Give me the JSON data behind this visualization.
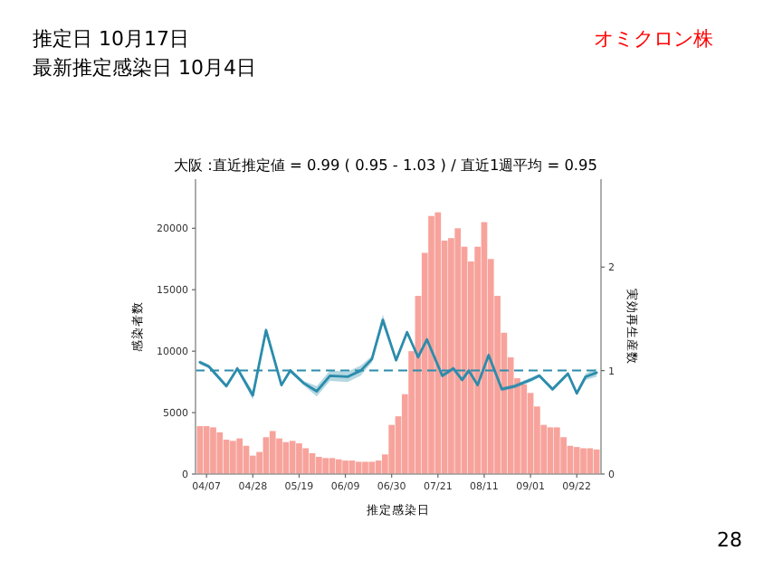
{
  "chart_data": {
    "type": "bar",
    "title": "大阪 :直近推定値 = 0.99 ( 0.95 - 1.03 ) / 直近1週平均 = 0.95",
    "annotations": [
      "推定日  10月17日",
      "最新推定感染日  10月4日",
      "オミクロン株",
      "28"
    ],
    "xlabel": "推定感染日",
    "ylabel": "感染者数",
    "y2label": "実効再生産数",
    "x": [
      "--04-04",
      "--04-07",
      "--04-10",
      "--04-13",
      "--04-16",
      "--04-19",
      "--04-22",
      "--04-25",
      "--04-28",
      "--05-01",
      "--05-04",
      "--05-07",
      "--05-10",
      "--05-13",
      "--05-16",
      "--05-19",
      "--05-22",
      "--05-25",
      "--05-28",
      "--05-31",
      "--06-03",
      "--06-06",
      "--06-09",
      "--06-12",
      "--06-15",
      "--06-18",
      "--06-21",
      "--06-24",
      "--06-27",
      "--06-30",
      "--07-03",
      "--07-06",
      "--07-09",
      "--07-12",
      "--07-15",
      "--07-18",
      "--07-21",
      "--07-24",
      "--07-27",
      "--07-30",
      "--08-02",
      "--08-05",
      "--08-08",
      "--08-11",
      "--08-14",
      "--08-17",
      "--08-20",
      "--08-23",
      "--08-26",
      "--08-29",
      "--09-01",
      "--09-04",
      "--09-07",
      "--09-10",
      "--09-13",
      "--09-16",
      "--09-19",
      "--09-22",
      "--09-25",
      "--09-28",
      "--10-01"
    ],
    "series": [
      {
        "color": "#f7a39c",
        "values": [
          3900,
          3900,
          3800,
          3400,
          2800,
          2700,
          2900,
          2300,
          1500,
          1800,
          3000,
          3500,
          2900,
          2600,
          2700,
          2500,
          2100,
          1700,
          1400,
          1300,
          1300,
          1200,
          1100,
          1100,
          1000,
          1000,
          1000,
          1100,
          1600,
          4000,
          4700,
          6500,
          10000,
          14500,
          18000,
          21000,
          21300,
          19000,
          19200,
          20000,
          18500,
          17300,
          18500,
          20500,
          17500,
          14500,
          11500,
          9500,
          7800,
          7300,
          6600,
          5500,
          4000,
          3800,
          3800,
          3000,
          2300,
          2200,
          2100,
          2100,
          2000
        ]
      },
      {
        "type": "line",
        "axis": "y2",
        "color": "#2b8cab",
        "x": [
          "--04-04",
          "--04-08",
          "--04-16",
          "--04-21",
          "--04-28",
          "--05-04",
          "--05-11",
          "--05-15",
          "--05-21",
          "--05-27",
          "--06-02",
          "--06-10",
          "--06-16",
          "--06-21",
          "--06-26",
          "--07-02",
          "--07-07",
          "--07-12",
          "--07-16",
          "--07-23",
          "--07-28",
          "--08-01",
          "--08-04",
          "--08-08",
          "--08-13",
          "--08-19",
          "--08-25",
          "--09-01",
          "--09-05",
          "--09-11",
          "--09-18",
          "--09-22",
          "--09-26",
          "--10-01"
        ],
        "values": [
          1.08,
          1.04,
          0.85,
          1.02,
          0.76,
          1.39,
          0.86,
          1.0,
          0.88,
          0.8,
          0.95,
          0.94,
          1.0,
          1.11,
          1.49,
          1.1,
          1.37,
          1.13,
          1.3,
          0.95,
          1.02,
          0.91,
          1.0,
          0.86,
          1.15,
          0.82,
          0.85,
          0.91,
          0.95,
          0.82,
          0.97,
          0.78,
          0.94,
          0.98
        ],
        "lower": [
          1.06,
          1.02,
          0.83,
          1.0,
          0.72,
          1.36,
          0.84,
          0.98,
          0.86,
          0.75,
          0.9,
          0.89,
          0.95,
          1.08,
          1.44,
          1.08,
          1.35,
          1.11,
          1.28,
          0.93,
          1.0,
          0.89,
          0.98,
          0.84,
          1.13,
          0.8,
          0.83,
          0.89,
          0.93,
          0.8,
          0.95,
          0.76,
          0.91,
          0.94
        ],
        "upper": [
          1.1,
          1.06,
          0.87,
          1.04,
          0.8,
          1.42,
          0.88,
          1.02,
          0.9,
          0.85,
          1.0,
          0.99,
          1.05,
          1.14,
          1.54,
          1.12,
          1.39,
          1.15,
          1.32,
          0.97,
          1.04,
          0.93,
          1.02,
          0.88,
          1.17,
          0.84,
          0.87,
          0.93,
          0.97,
          0.84,
          0.99,
          0.8,
          0.97,
          1.02
        ]
      }
    ],
    "xlim": [
      "--04-02",
      "--10-03"
    ],
    "xticks": [
      {
        "value": "--04-07",
        "label": "04/07"
      },
      {
        "value": "--04-28",
        "label": "04/28"
      },
      {
        "value": "--05-19",
        "label": "05/19"
      },
      {
        "value": "--06-09",
        "label": "06/09"
      },
      {
        "value": "--06-30",
        "label": "06/30"
      },
      {
        "value": "--07-21",
        "label": "07/21"
      },
      {
        "value": "--08-11",
        "label": "08/11"
      },
      {
        "value": "--09-01",
        "label": "09/01"
      },
      {
        "value": "--09-22",
        "label": "09/22"
      }
    ],
    "ylim": [
      0,
      24000
    ],
    "yticks": [
      0,
      5000,
      10000,
      15000,
      20000
    ],
    "y2lim": [
      0,
      2.85
    ],
    "y2ticks": [
      0,
      1,
      2
    ],
    "ref_lines": [
      {
        "axis": "y2",
        "value": 1,
        "color": "#2b8cab",
        "line_style": "dashed"
      }
    ]
  }
}
